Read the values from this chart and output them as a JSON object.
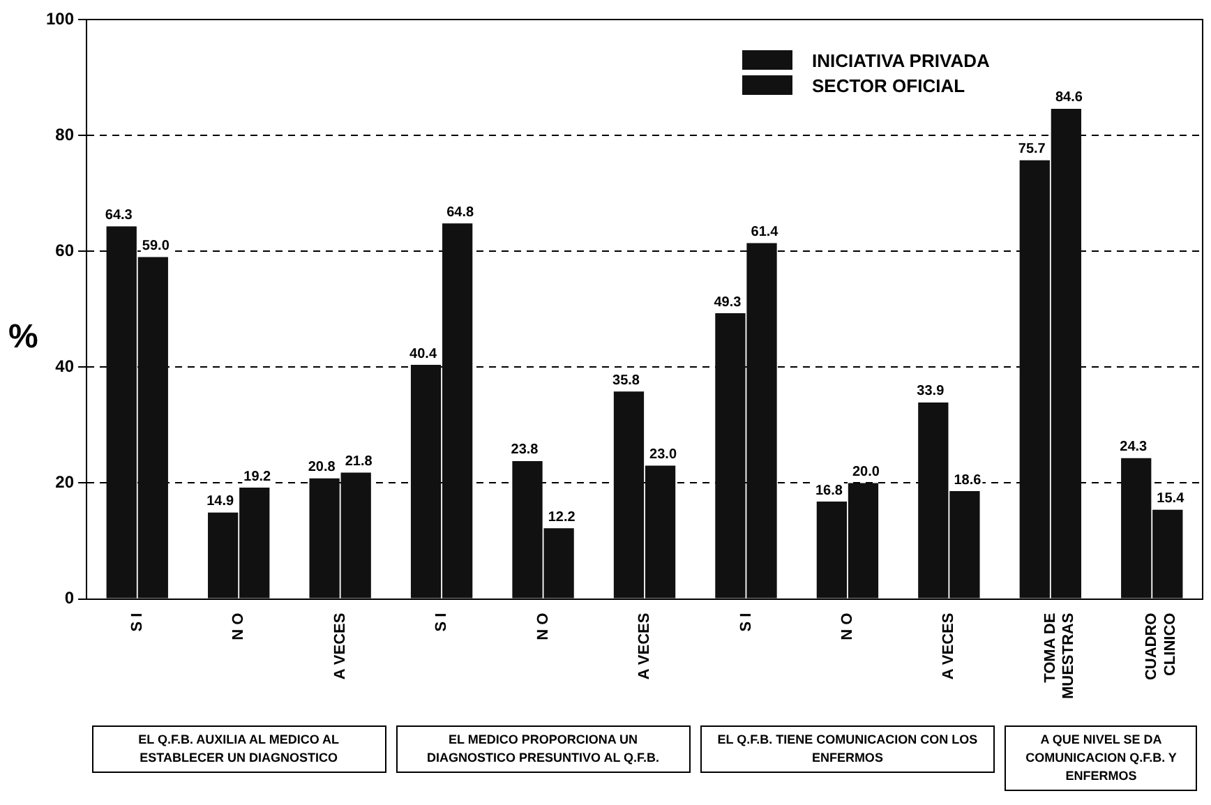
{
  "chart_data": {
    "type": "bar",
    "ylabel": "%",
    "categories": [
      "S I",
      "N O",
      "A VECES",
      "S I",
      "N O",
      "A VECES",
      "S I",
      "N O",
      "A VECES",
      "TOMA DE MUESTRAS",
      "CUADRO CLINICO"
    ],
    "series": [
      {
        "name": "INICIATIVA PRIVADA",
        "color": "#111111",
        "values": [
          64.3,
          14.9,
          20.8,
          40.4,
          23.8,
          35.8,
          49.3,
          16.8,
          33.9,
          75.7,
          24.3
        ],
        "value_labels": [
          "64.3",
          "14.9",
          "20.8",
          "40.4",
          "23.8",
          "35.8",
          "49.3",
          "16.8",
          "33.9",
          "75.7",
          "24.3"
        ]
      },
      {
        "name": "SECTOR OFICIAL",
        "color": "#111111",
        "values": [
          59.0,
          19.2,
          21.8,
          64.8,
          12.2,
          23.0,
          61.4,
          20.0,
          18.6,
          84.6,
          15.4
        ],
        "value_labels": [
          "59.0",
          "19.2",
          "21.8",
          "64.8",
          "12.2",
          "23.0",
          "61.4",
          "20.0",
          "18.6",
          "84.6",
          "15.4"
        ]
      }
    ],
    "ylim": [
      0,
      100
    ],
    "yticks": [
      0,
      20,
      40,
      60,
      80,
      100
    ],
    "grid": "y",
    "line_style": "dashed",
    "legend": "top right",
    "annotations": [
      "EL Q.F.B. AUXILIA AL MEDICO AL ESTABLECER UN DIAGNOSTICO",
      "EL MEDICO PROPORCIONA UN DIAGNOSTICO PRESUNTIVO AL Q.F.B.",
      "EL Q.F.B. TIENE COMUNICACION CON LOS ENFERMOS",
      "A QUE NIVEL SE DA COMUNICACION Q.F.B. Y ENFERMOS"
    ]
  }
}
